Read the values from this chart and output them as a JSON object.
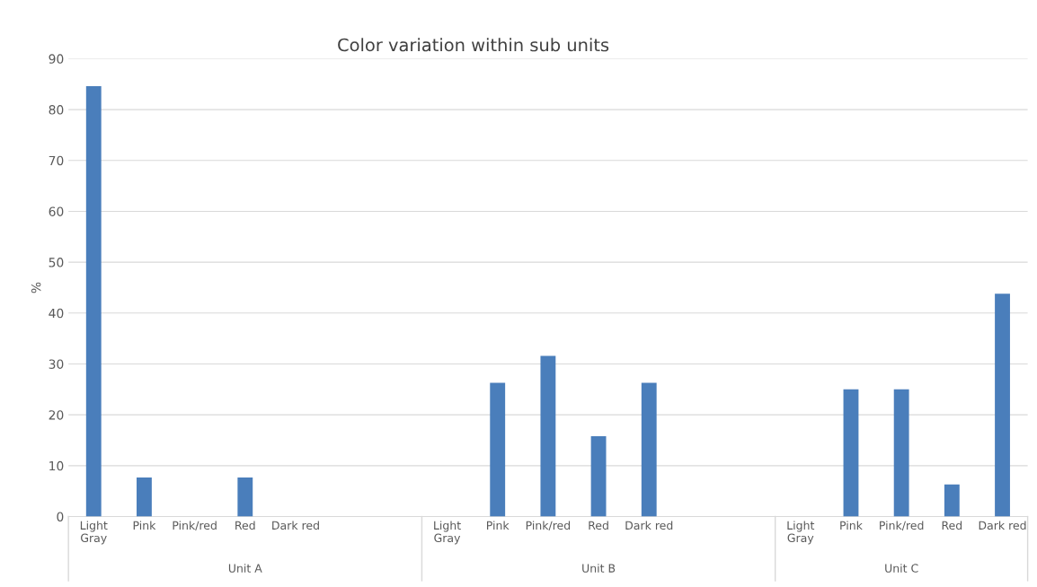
{
  "chart_data": {
    "type": "bar",
    "title": "Color variation within sub units",
    "ylabel": "%",
    "categories": [
      "Light\nGray",
      "Pink",
      "Pink/red",
      "Red",
      "Dark red",
      null,
      null,
      "Light\nGray",
      "Pink",
      "Pink/red",
      "Red",
      "Dark red",
      null,
      null,
      "Light\nGray",
      "Pink",
      "Pink/red",
      "Red",
      "Dark red"
    ],
    "values": [
      84.6,
      7.7,
      0,
      7.7,
      0,
      null,
      null,
      0,
      26.3,
      31.6,
      15.8,
      26.3,
      null,
      null,
      0,
      25,
      25,
      6.3,
      43.8
    ],
    "color": "#4a7ebb",
    "annotations": [
      "Unit A",
      "Unit B",
      "Unit C"
    ],
    "ylim": [
      0,
      90
    ],
    "yticks": [
      0,
      10,
      20,
      30,
      40,
      50,
      60,
      70,
      80,
      90
    ],
    "grid": "y",
    "legend": false
  }
}
